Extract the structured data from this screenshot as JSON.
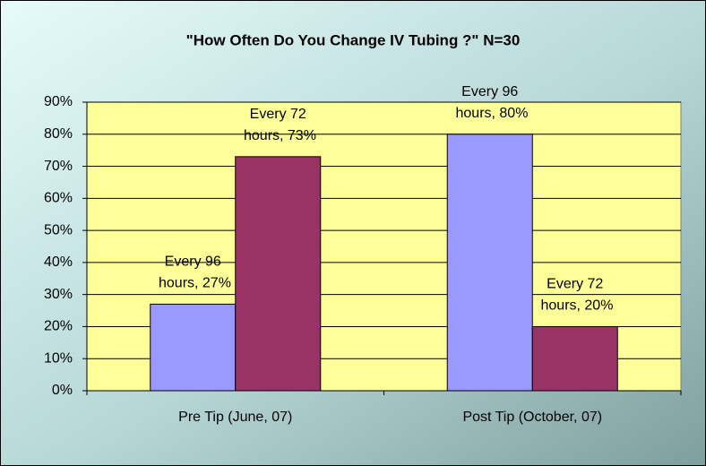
{
  "chart_data": {
    "type": "bar",
    "title": "\"How Often Do You Change IV Tubing ?\" N=30",
    "categories": [
      "Pre Tip (June, 07)",
      "Post Tip (October, 07)"
    ],
    "series": [
      {
        "color": "#9999ff",
        "values": [
          27,
          80
        ],
        "value_labels": [
          "Every 96 hours, 27%",
          "Every 96 hours, 80%"
        ]
      },
      {
        "color": "#993366",
        "values": [
          73,
          20
        ],
        "value_labels": [
          "Every 72 hours, 73%",
          "Every 72 hours, 20%"
        ]
      }
    ],
    "ylim": [
      0,
      90
    ],
    "yticks": [
      {
        "value": 0,
        "label": "0%"
      },
      {
        "value": 10,
        "label": "10%"
      },
      {
        "value": 20,
        "label": "20%"
      },
      {
        "value": 30,
        "label": "30%"
      },
      {
        "value": 40,
        "label": "40%"
      },
      {
        "value": 50,
        "label": "50%"
      },
      {
        "value": 60,
        "label": "60%"
      },
      {
        "value": 70,
        "label": "70%"
      },
      {
        "value": 80,
        "label": "80%"
      },
      {
        "value": 90,
        "label": "90%"
      }
    ],
    "grid": true,
    "plot_background": "#ffff99"
  }
}
